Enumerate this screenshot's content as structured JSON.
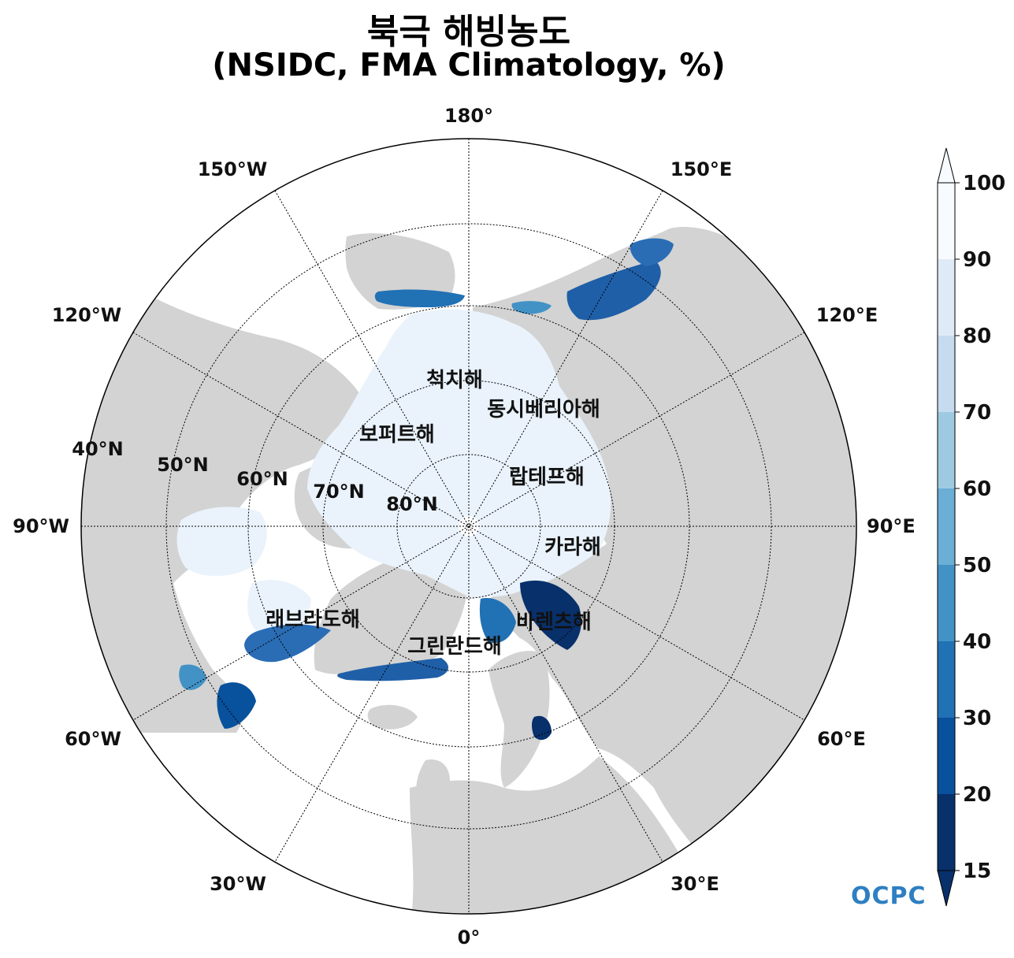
{
  "title": {
    "line1": "북극 해빙농도",
    "line2": "(NSIDC, FMA Climatology, %)"
  },
  "colors": {
    "land": "#d3d3d3",
    "ocean": "#ffffff",
    "ice_high": "#eaf3fc",
    "ice_edge": "#1f5fa8",
    "ice_low": "#08306b"
  },
  "map": {
    "projection": "north-polar-stereographic",
    "lat_labels": [
      "40°N",
      "50°N",
      "60°N",
      "70°N",
      "80°N"
    ],
    "lon_labels": {
      "top": "180°",
      "bottom": "0°",
      "left": "90°W",
      "right": "90°E",
      "w150": "150°W",
      "e150": "150°E",
      "w120": "120°W",
      "e120": "120°E",
      "w60": "60°W",
      "e60": "60°E",
      "w30": "30°W",
      "e30": "30°E"
    },
    "regions": {
      "chukchi": "척치해",
      "east_siberian": "동시베리아해",
      "beaufort": "보퍼트해",
      "laptev": "랍테프해",
      "kara": "카라해",
      "labrador": "래브라도해",
      "barents": "바렌츠해",
      "greenland": "그린란드해"
    }
  },
  "colorbar": {
    "ticks": [
      "100",
      "90",
      "80",
      "70",
      "60",
      "50",
      "40",
      "30",
      "20",
      "15"
    ],
    "min": 15,
    "max": 100,
    "colors": [
      "#f7fbff",
      "#deebf7",
      "#c6dbef",
      "#9ecae1",
      "#6baed6",
      "#4292c6",
      "#2171b5",
      "#08519c",
      "#08306b"
    ]
  },
  "logo": "OCPC"
}
